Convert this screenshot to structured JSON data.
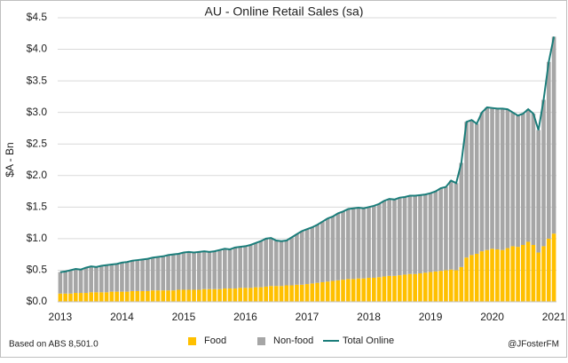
{
  "chart_data": {
    "type": "bar",
    "stacked": true,
    "title": "AU - Online Retail Sales (sa)",
    "y_label": "$A - Bn",
    "source": "Based on ABS 8,501.0",
    "credit": "@JFosterFM",
    "legend": "bottom",
    "grid": true,
    "ylim": [
      0,
      4.5
    ],
    "yticks": [
      {
        "value": 0,
        "label": "$0.0"
      },
      {
        "value": 0.5,
        "label": "$0.5"
      },
      {
        "value": 1,
        "label": "$1.0"
      },
      {
        "value": 1.5,
        "label": "$1.5"
      },
      {
        "value": 2,
        "label": "$2.0"
      },
      {
        "value": 2.5,
        "label": "$2.5"
      },
      {
        "value": 3,
        "label": "$3.0"
      },
      {
        "value": 3.5,
        "label": "$3.5"
      },
      {
        "value": 4,
        "label": "$4.0"
      },
      {
        "value": 4.5,
        "label": "$4.5"
      }
    ],
    "categories": [
      "2013",
      null,
      null,
      null,
      null,
      null,
      null,
      null,
      null,
      null,
      null,
      null,
      "2014",
      null,
      null,
      null,
      null,
      null,
      null,
      null,
      null,
      null,
      null,
      null,
      "2015",
      null,
      null,
      null,
      null,
      null,
      null,
      null,
      null,
      null,
      null,
      null,
      "2016",
      null,
      null,
      null,
      null,
      null,
      null,
      null,
      null,
      null,
      null,
      null,
      "2017",
      null,
      null,
      null,
      null,
      null,
      null,
      null,
      null,
      null,
      null,
      null,
      "2018",
      null,
      null,
      null,
      null,
      null,
      null,
      null,
      null,
      null,
      null,
      null,
      "2019",
      null,
      null,
      null,
      null,
      null,
      null,
      null,
      null,
      null,
      null,
      null,
      "2020",
      null,
      null,
      null,
      null,
      null,
      null,
      null,
      null,
      null,
      null,
      null,
      "2021"
    ],
    "series": [
      {
        "name": "Food",
        "type": "bar",
        "color": "#ffc000",
        "values": [
          0.13,
          0.13,
          0.13,
          0.14,
          0.14,
          0.14,
          0.15,
          0.15,
          0.15,
          0.15,
          0.16,
          0.16,
          0.16,
          0.16,
          0.17,
          0.17,
          0.17,
          0.17,
          0.18,
          0.18,
          0.18,
          0.18,
          0.18,
          0.19,
          0.19,
          0.19,
          0.19,
          0.19,
          0.2,
          0.2,
          0.2,
          0.2,
          0.21,
          0.21,
          0.21,
          0.22,
          0.22,
          0.22,
          0.23,
          0.23,
          0.24,
          0.25,
          0.25,
          0.25,
          0.26,
          0.26,
          0.27,
          0.27,
          0.28,
          0.29,
          0.3,
          0.31,
          0.32,
          0.33,
          0.34,
          0.35,
          0.36,
          0.36,
          0.37,
          0.37,
          0.38,
          0.38,
          0.39,
          0.4,
          0.41,
          0.41,
          0.42,
          0.43,
          0.44,
          0.44,
          0.45,
          0.46,
          0.47,
          0.48,
          0.49,
          0.5,
          0.51,
          0.5,
          0.55,
          0.7,
          0.74,
          0.76,
          0.8,
          0.82,
          0.84,
          0.83,
          0.82,
          0.85,
          0.88,
          0.87,
          0.9,
          0.95,
          0.9,
          0.78,
          0.88,
          1.0,
          1.08
        ]
      },
      {
        "name": "Non-food",
        "type": "bar",
        "color": "#a6a6a6",
        "values": [
          0.34,
          0.35,
          0.37,
          0.38,
          0.37,
          0.4,
          0.41,
          0.4,
          0.42,
          0.43,
          0.43,
          0.44,
          0.46,
          0.47,
          0.48,
          0.49,
          0.5,
          0.51,
          0.52,
          0.53,
          0.54,
          0.56,
          0.57,
          0.57,
          0.59,
          0.6,
          0.59,
          0.6,
          0.6,
          0.59,
          0.6,
          0.62,
          0.63,
          0.62,
          0.65,
          0.65,
          0.66,
          0.68,
          0.7,
          0.73,
          0.76,
          0.76,
          0.72,
          0.71,
          0.71,
          0.76,
          0.8,
          0.85,
          0.87,
          0.89,
          0.92,
          0.96,
          1.0,
          1.02,
          1.06,
          1.08,
          1.11,
          1.12,
          1.12,
          1.11,
          1.12,
          1.14,
          1.16,
          1.2,
          1.22,
          1.21,
          1.23,
          1.23,
          1.24,
          1.24,
          1.24,
          1.24,
          1.25,
          1.27,
          1.31,
          1.32,
          1.41,
          1.38,
          1.65,
          2.15,
          2.14,
          2.06,
          2.2,
          2.26,
          2.23,
          2.23,
          2.24,
          2.2,
          2.12,
          2.08,
          2.08,
          2.1,
          2.08,
          1.94,
          2.32,
          2.8,
          3.12
        ]
      },
      {
        "name": "Total Online",
        "type": "line",
        "color": "#1b7d7a",
        "values": [
          0.47,
          0.48,
          0.5,
          0.52,
          0.51,
          0.54,
          0.56,
          0.55,
          0.57,
          0.58,
          0.59,
          0.6,
          0.62,
          0.63,
          0.65,
          0.66,
          0.67,
          0.68,
          0.7,
          0.71,
          0.72,
          0.74,
          0.75,
          0.76,
          0.78,
          0.79,
          0.78,
          0.79,
          0.8,
          0.79,
          0.8,
          0.82,
          0.84,
          0.83,
          0.86,
          0.87,
          0.88,
          0.9,
          0.93,
          0.96,
          1.0,
          1.01,
          0.97,
          0.96,
          0.97,
          1.02,
          1.07,
          1.12,
          1.15,
          1.18,
          1.22,
          1.27,
          1.32,
          1.35,
          1.4,
          1.43,
          1.47,
          1.48,
          1.49,
          1.48,
          1.5,
          1.52,
          1.55,
          1.6,
          1.63,
          1.62,
          1.65,
          1.66,
          1.68,
          1.68,
          1.69,
          1.7,
          1.72,
          1.75,
          1.8,
          1.82,
          1.92,
          1.88,
          2.2,
          2.85,
          2.88,
          2.82,
          3.0,
          3.08,
          3.07,
          3.06,
          3.06,
          3.05,
          3.0,
          2.95,
          2.98,
          3.05,
          2.98,
          2.72,
          3.2,
          3.8,
          4.2
        ]
      }
    ]
  }
}
